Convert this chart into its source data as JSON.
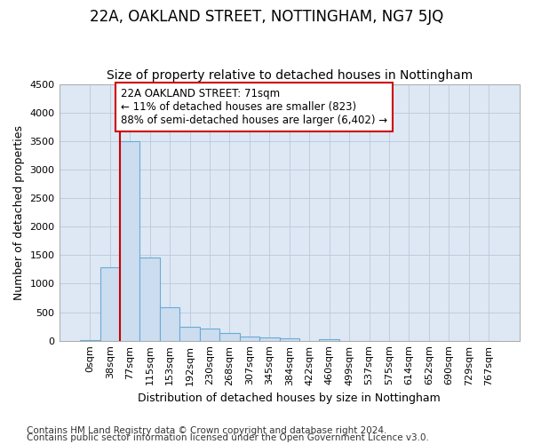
{
  "title": "22A, OAKLAND STREET, NOTTINGHAM, NG7 5JQ",
  "subtitle": "Size of property relative to detached houses in Nottingham",
  "xlabel": "Distribution of detached houses by size in Nottingham",
  "ylabel": "Number of detached properties",
  "bar_labels": [
    "0sqm",
    "38sqm",
    "77sqm",
    "115sqm",
    "153sqm",
    "192sqm",
    "230sqm",
    "268sqm",
    "307sqm",
    "345sqm",
    "384sqm",
    "422sqm",
    "460sqm",
    "499sqm",
    "537sqm",
    "575sqm",
    "614sqm",
    "652sqm",
    "690sqm",
    "729sqm",
    "767sqm"
  ],
  "bar_values": [
    5,
    1280,
    3500,
    1460,
    580,
    245,
    210,
    140,
    80,
    55,
    40,
    0,
    30,
    0,
    0,
    0,
    0,
    0,
    0,
    0,
    0
  ],
  "bar_color": "#ccddf0",
  "bar_edge_color": "#6aaad4",
  "red_line_x": 1.5,
  "red_line_color": "#cc0000",
  "annotation_text": "22A OAKLAND STREET: 71sqm\n← 11% of detached houses are smaller (823)\n88% of semi-detached houses are larger (6,402) →",
  "annotation_box_edge_color": "#cc0000",
  "annotation_box_face_color": "#ffffff",
  "ylim_max": 4500,
  "yticks": [
    0,
    500,
    1000,
    1500,
    2000,
    2500,
    3000,
    3500,
    4000,
    4500
  ],
  "plot_bg_color": "#dde8f4",
  "grid_color": "#b8c8dc",
  "title_fontsize": 12,
  "subtitle_fontsize": 10,
  "axis_label_fontsize": 9,
  "tick_fontsize": 8,
  "annotation_fontsize": 8.5,
  "footer_fontsize": 7.5,
  "footer_line1": "Contains HM Land Registry data © Crown copyright and database right 2024.",
  "footer_line2": "Contains public sector information licensed under the Open Government Licence v3.0."
}
